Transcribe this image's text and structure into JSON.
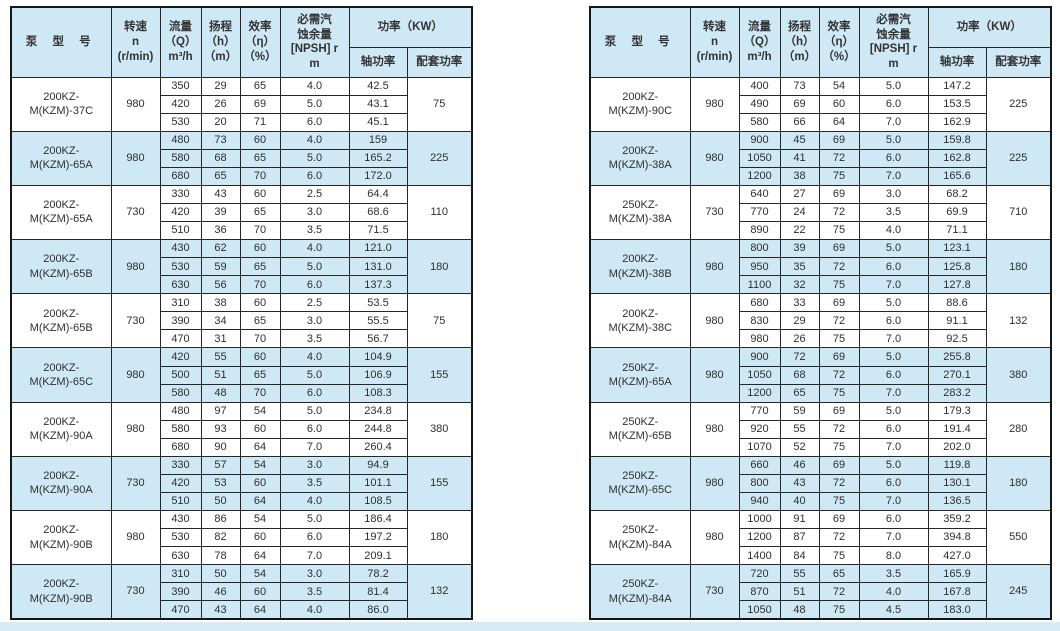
{
  "colors": {
    "page_bg": "#ffffff",
    "header_bg": "#cfe8f5",
    "shaded_row_bg": "#cfe8f5",
    "inner_border": "#262626",
    "outer_border": "#161616",
    "bottom_strip": "#d6ebf5",
    "text": "#2e2e2e"
  },
  "header": {
    "model": "泵 型 号",
    "speed_lines": [
      "转速",
      "n",
      "(r/min)"
    ],
    "flow_lines": [
      "流量",
      "（Q）",
      "m³/h"
    ],
    "head_lines": [
      "扬程",
      "（h）",
      "（m）"
    ],
    "eff_lines": [
      "效率",
      "（η）",
      "（%）"
    ],
    "npsh_lines": [
      "必需汽",
      "蚀余量",
      "[NPSH] r",
      "m"
    ],
    "power_group": "功率（KW）",
    "shaft_power": "轴功率",
    "matching_power": "配套功率"
  },
  "tables": [
    {
      "id": "left",
      "groups": [
        {
          "model": "200KZ-M(KZM)-37C",
          "speed": "980",
          "shade": false,
          "matching": "75",
          "rows": [
            [
              "350",
              "29",
              "65",
              "4.0",
              "42.5"
            ],
            [
              "420",
              "26",
              "69",
              "5.0",
              "43.1"
            ],
            [
              "530",
              "20",
              "71",
              "6.0",
              "45.1"
            ]
          ]
        },
        {
          "model": "200KZ-M(KZM)-65A",
          "speed": "980",
          "shade": true,
          "matching": "225",
          "rows": [
            [
              "480",
              "73",
              "60",
              "4.0",
              "159"
            ],
            [
              "580",
              "68",
              "65",
              "5.0",
              "165.2"
            ],
            [
              "680",
              "65",
              "70",
              "6.0",
              "172.0"
            ]
          ]
        },
        {
          "model": "200KZ-M(KZM)-65A",
          "speed": "730",
          "shade": false,
          "matching": "110",
          "rows": [
            [
              "330",
              "43",
              "60",
              "2.5",
              "64.4"
            ],
            [
              "420",
              "39",
              "65",
              "3.0",
              "68.6"
            ],
            [
              "510",
              "36",
              "70",
              "3.5",
              "71.5"
            ]
          ]
        },
        {
          "model": "200KZ-M(KZM)-65B",
          "speed": "980",
          "shade": true,
          "matching": "180",
          "rows": [
            [
              "430",
              "62",
              "60",
              "4.0",
              "121.0"
            ],
            [
              "530",
              "59",
              "65",
              "5.0",
              "131.0"
            ],
            [
              "630",
              "56",
              "70",
              "6.0",
              "137.3"
            ]
          ]
        },
        {
          "model": "200KZ-M(KZM)-65B",
          "speed": "730",
          "shade": false,
          "matching": "75",
          "rows": [
            [
              "310",
              "38",
              "60",
              "2.5",
              "53.5"
            ],
            [
              "390",
              "34",
              "65",
              "3.0",
              "55.5"
            ],
            [
              "470",
              "31",
              "70",
              "3.5",
              "56.7"
            ]
          ]
        },
        {
          "model": "200KZ-M(KZM)-65C",
          "speed": "980",
          "shade": true,
          "matching": "155",
          "rows": [
            [
              "420",
              "55",
              "60",
              "4.0",
              "104.9"
            ],
            [
              "500",
              "51",
              "65",
              "5.0",
              "106.9"
            ],
            [
              "580",
              "48",
              "70",
              "6.0",
              "108.3"
            ]
          ]
        },
        {
          "model": "200KZ-M(KZM)-90A",
          "speed": "980",
          "shade": false,
          "matching": "380",
          "rows": [
            [
              "480",
              "97",
              "54",
              "5.0",
              "234.8"
            ],
            [
              "580",
              "93",
              "60",
              "6.0",
              "244.8"
            ],
            [
              "680",
              "90",
              "64",
              "7.0",
              "260.4"
            ]
          ]
        },
        {
          "model": "200KZ-M(KZM)-90A",
          "speed": "730",
          "shade": true,
          "matching": "155",
          "rows": [
            [
              "330",
              "57",
              "54",
              "3.0",
              "94.9"
            ],
            [
              "420",
              "53",
              "60",
              "3.5",
              "101.1"
            ],
            [
              "510",
              "50",
              "64",
              "4.0",
              "108.5"
            ]
          ]
        },
        {
          "model": "200KZ-M(KZM)-90B",
          "speed": "980",
          "shade": false,
          "matching": "180",
          "rows": [
            [
              "430",
              "86",
              "54",
              "5.0",
              "186.4"
            ],
            [
              "530",
              "82",
              "60",
              "6.0",
              "197.2"
            ],
            [
              "630",
              "78",
              "64",
              "7.0",
              "209.1"
            ]
          ]
        },
        {
          "model": "200KZ-M(KZM)-90B",
          "speed": "730",
          "shade": true,
          "matching": "132",
          "rows": [
            [
              "310",
              "50",
              "54",
              "3.0",
              "78.2"
            ],
            [
              "390",
              "46",
              "60",
              "3.5",
              "81.4"
            ],
            [
              "470",
              "43",
              "64",
              "4.0",
              "86.0"
            ]
          ]
        }
      ]
    },
    {
      "id": "right",
      "groups": [
        {
          "model": "200KZ-M(KZM)-90C",
          "speed": "980",
          "shade": false,
          "matching": "225",
          "rows": [
            [
              "400",
              "73",
              "54",
              "5.0",
              "147.2"
            ],
            [
              "490",
              "69",
              "60",
              "6.0",
              "153.5"
            ],
            [
              "580",
              "66",
              "64",
              "7.0",
              "162.9"
            ]
          ]
        },
        {
          "model": "200KZ-M(KZM)-38A",
          "speed": "980",
          "shade": true,
          "matching": "225",
          "rows": [
            [
              "900",
              "45",
              "69",
              "5.0",
              "159.8"
            ],
            [
              "1050",
              "41",
              "72",
              "6.0",
              "162.8"
            ],
            [
              "1200",
              "38",
              "75",
              "7.0",
              "165.6"
            ]
          ]
        },
        {
          "model": "250KZ-M(KZM)-38A",
          "speed": "730",
          "shade": false,
          "matching": "710",
          "rows": [
            [
              "640",
              "27",
              "69",
              "3.0",
              "68.2"
            ],
            [
              "770",
              "24",
              "72",
              "3.5",
              "69.9"
            ],
            [
              "890",
              "22",
              "75",
              "4.0",
              "71.1"
            ]
          ]
        },
        {
          "model": "200KZ-M(KZM)-38B",
          "speed": "980",
          "shade": true,
          "matching": "180",
          "rows": [
            [
              "800",
              "39",
              "69",
              "5.0",
              "123.1"
            ],
            [
              "950",
              "35",
              "72",
              "6.0",
              "125.8"
            ],
            [
              "1100",
              "32",
              "75",
              "7.0",
              "127.8"
            ]
          ]
        },
        {
          "model": "200KZ-M(KZM)-38C",
          "speed": "980",
          "shade": false,
          "matching": "132",
          "rows": [
            [
              "680",
              "33",
              "69",
              "5.0",
              "88.6"
            ],
            [
              "830",
              "29",
              "72",
              "6.0",
              "91.1"
            ],
            [
              "980",
              "26",
              "75",
              "7.0",
              "92.5"
            ]
          ]
        },
        {
          "model": "250KZ-M(KZM)-65A",
          "speed": "980",
          "shade": true,
          "matching": "380",
          "rows": [
            [
              "900",
              "72",
              "69",
              "5.0",
              "255.8"
            ],
            [
              "1050",
              "68",
              "72",
              "6.0",
              "270.1"
            ],
            [
              "1200",
              "65",
              "75",
              "7.0",
              "283.2"
            ]
          ]
        },
        {
          "model": "250KZ-M(KZM)-65B",
          "speed": "980",
          "shade": false,
          "matching": "280",
          "rows": [
            [
              "770",
              "59",
              "69",
              "5.0",
              "179.3"
            ],
            [
              "920",
              "55",
              "72",
              "6.0",
              "191.4"
            ],
            [
              "1070",
              "52",
              "75",
              "7.0",
              "202.0"
            ]
          ]
        },
        {
          "model": "250KZ-M(KZM)-65C",
          "speed": "980",
          "shade": true,
          "matching": "180",
          "rows": [
            [
              "660",
              "46",
              "69",
              "5.0",
              "119.8"
            ],
            [
              "800",
              "43",
              "72",
              "6.0",
              "130.1"
            ],
            [
              "940",
              "40",
              "75",
              "7.0",
              "136.5"
            ]
          ]
        },
        {
          "model": "250KZ-M(KZM)-84A",
          "speed": "980",
          "shade": false,
          "matching": "550",
          "rows": [
            [
              "1000",
              "91",
              "69",
              "6.0",
              "359.2"
            ],
            [
              "1200",
              "87",
              "72",
              "7.0",
              "394.8"
            ],
            [
              "1400",
              "84",
              "75",
              "8.0",
              "427.0"
            ]
          ]
        },
        {
          "model": "250KZ-M(KZM)-84A",
          "speed": "730",
          "shade": true,
          "matching": "245",
          "rows": [
            [
              "720",
              "55",
              "65",
              "3.5",
              "165.9"
            ],
            [
              "870",
              "51",
              "72",
              "4.0",
              "167.8"
            ],
            [
              "1050",
              "48",
              "75",
              "4.5",
              "183.0"
            ]
          ]
        }
      ]
    }
  ]
}
